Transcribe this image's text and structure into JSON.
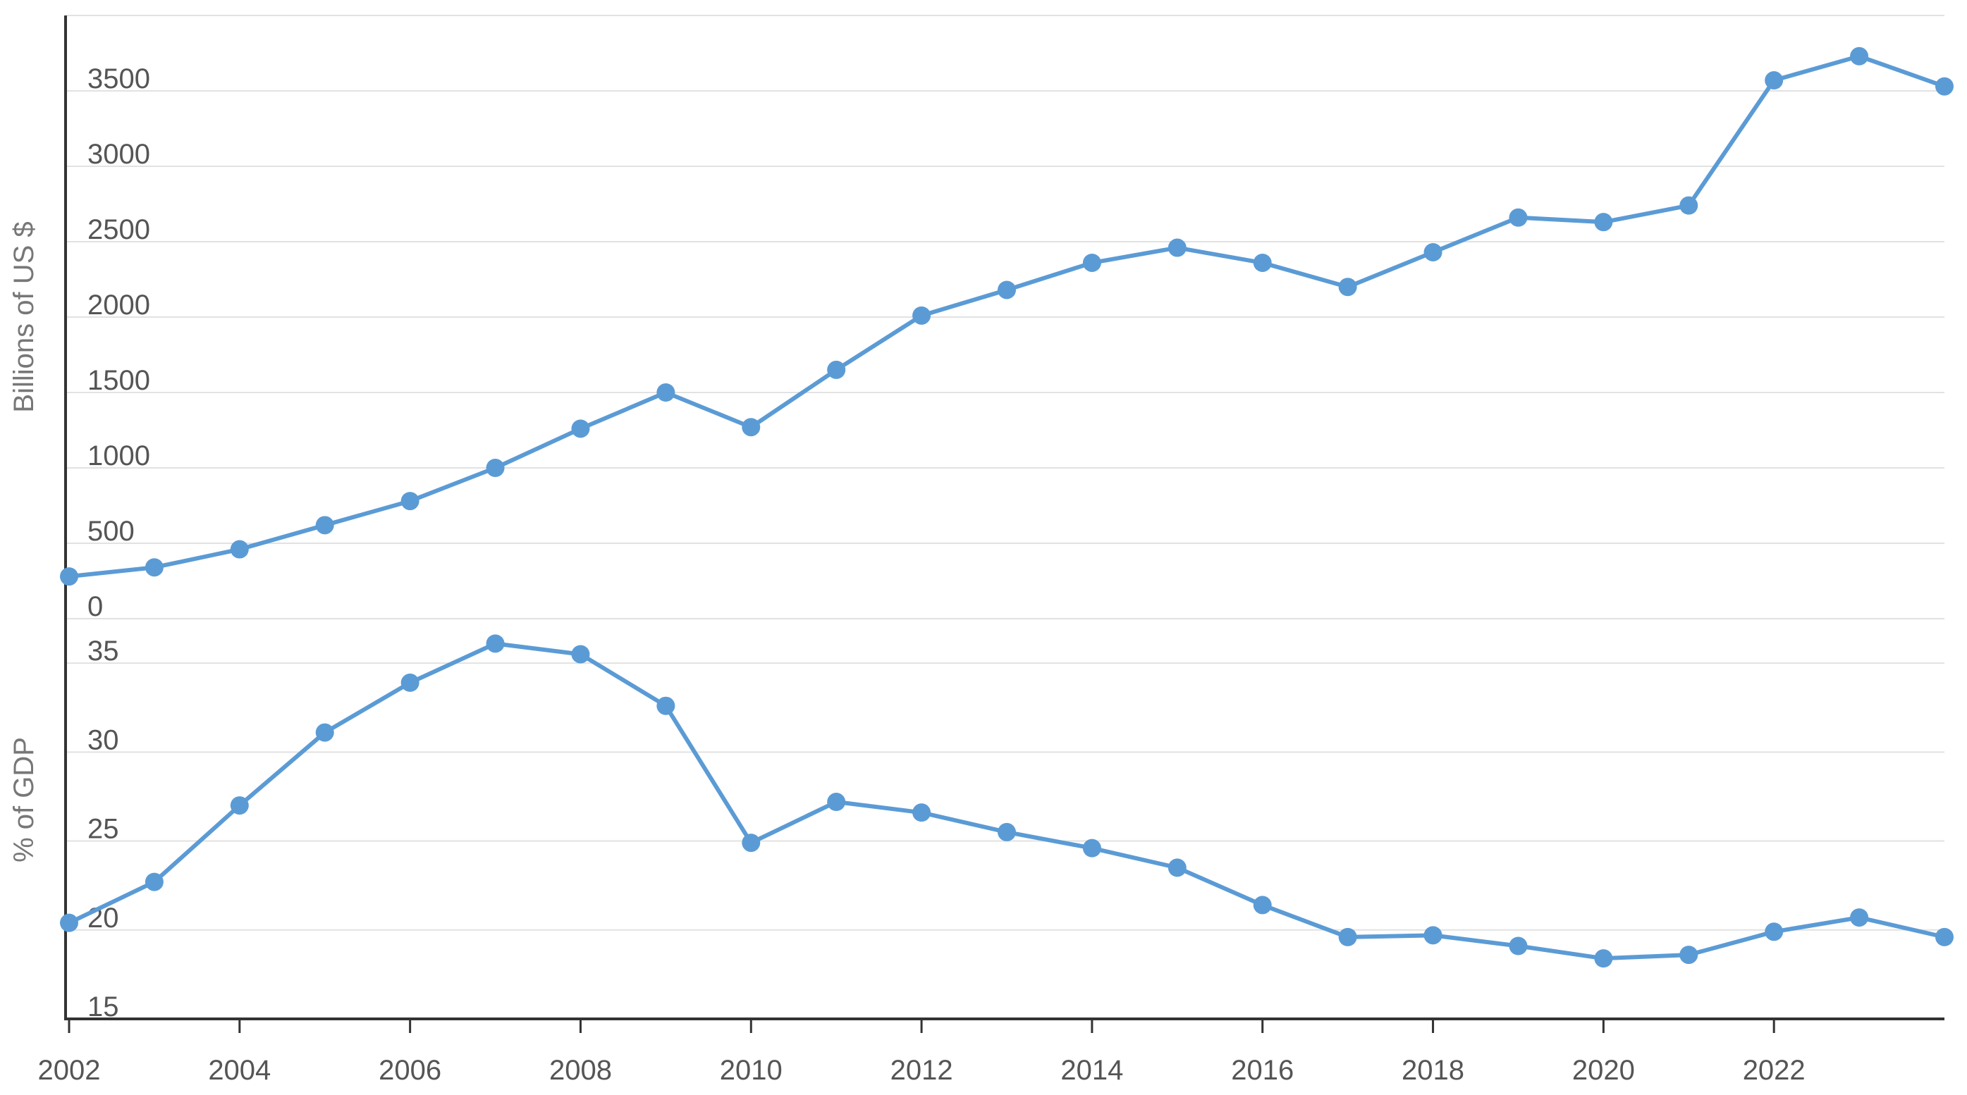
{
  "chart_data": [
    {
      "type": "line",
      "ylabel": "Billions of US $",
      "ylim": [
        0,
        4000
      ],
      "yticks": [
        0,
        500,
        1000,
        1500,
        2000,
        2500,
        3000,
        3500
      ],
      "grid": true,
      "color": "#5b9bd5",
      "x": [
        2002,
        2003,
        2004,
        2005,
        2006,
        2007,
        2008,
        2009,
        2010,
        2011,
        2012,
        2013,
        2014,
        2015,
        2016,
        2017,
        2018,
        2019,
        2020,
        2021,
        2022,
        2023,
        2024
      ],
      "values": [
        280,
        340,
        460,
        620,
        780,
        1000,
        1260,
        1500,
        1270,
        1650,
        2010,
        2180,
        2360,
        2460,
        2360,
        2200,
        2430,
        2660,
        2630,
        2740,
        3570,
        3730,
        3530
      ]
    },
    {
      "type": "line",
      "ylabel": "% of GDP",
      "ylim": [
        15,
        37.5
      ],
      "yticks": [
        15,
        20,
        25,
        30,
        35
      ],
      "grid": true,
      "color": "#5b9bd5",
      "x": [
        2002,
        2003,
        2004,
        2005,
        2006,
        2007,
        2008,
        2009,
        2010,
        2011,
        2012,
        2013,
        2014,
        2015,
        2016,
        2017,
        2018,
        2019,
        2020,
        2021,
        2022,
        2023,
        2024
      ],
      "values": [
        20.4,
        22.7,
        27.0,
        31.1,
        33.9,
        36.1,
        35.5,
        32.6,
        24.9,
        27.2,
        26.6,
        25.5,
        24.6,
        23.5,
        21.4,
        19.6,
        19.7,
        19.1,
        18.4,
        18.6,
        19.9,
        20.7,
        19.6
      ]
    }
  ],
  "x_axis": {
    "ticks": [
      2002,
      2004,
      2006,
      2008,
      2010,
      2012,
      2014,
      2016,
      2018,
      2020,
      2022
    ],
    "labels": [
      "2002",
      "2004",
      "2006",
      "2008",
      "2010",
      "2012",
      "2014",
      "2016",
      "2018",
      "2020",
      "2022"
    ]
  }
}
